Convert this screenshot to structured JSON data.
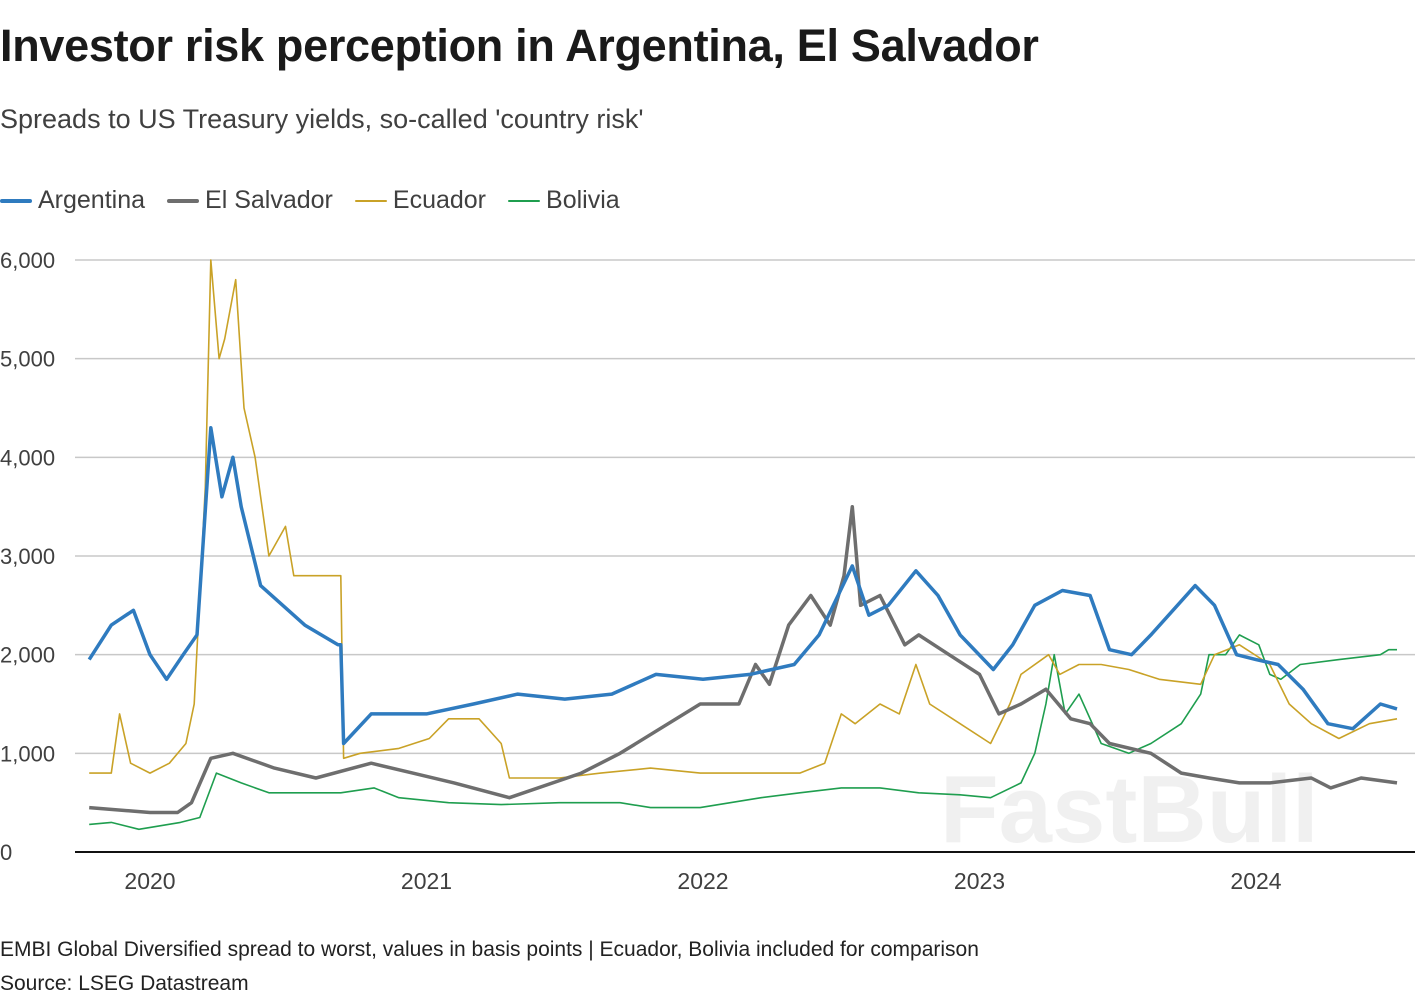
{
  "chart_data": {
    "type": "line",
    "title": "Investor risk perception in Argentina, El Salvador",
    "subtitle": "Spreads to US Treasury yields, so-called 'country risk'",
    "xlabel": "",
    "ylabel": "",
    "x_unit": "year",
    "xlim": [
      2019.73,
      2024.57
    ],
    "ylim": [
      0,
      6000
    ],
    "yticks": [
      0,
      1000,
      2000,
      3000,
      4000,
      5000,
      6000
    ],
    "ytick_labels": [
      "0",
      "1,000",
      "2,000",
      "3,000",
      "4,000",
      "5,000",
      "6,000"
    ],
    "xticks": [
      2020,
      2021,
      2022,
      2023,
      2024
    ],
    "xtick_labels": [
      "2020",
      "2021",
      "2022",
      "2023",
      "2024"
    ],
    "grid": "horizontal",
    "legend_position": "top-left",
    "series": [
      {
        "name": "Argentina",
        "color": "#2f7bbf",
        "x": [
          2019.78,
          2019.86,
          2019.94,
          2020.0,
          2020.06,
          2020.12,
          2020.17,
          2020.22,
          2020.26,
          2020.3,
          2020.33,
          2020.4,
          2020.48,
          2020.56,
          2020.68,
          2020.69,
          2020.7,
          2020.8,
          2020.95,
          2021.0,
          2021.17,
          2021.33,
          2021.5,
          2021.67,
          2021.83,
          2022.0,
          2022.17,
          2022.33,
          2022.42,
          2022.54,
          2022.6,
          2022.67,
          2022.77,
          2022.85,
          2022.93,
          2023.05,
          2023.12,
          2023.2,
          2023.3,
          2023.4,
          2023.47,
          2023.55,
          2023.62,
          2023.78,
          2023.85,
          2023.93,
          2024.0,
          2024.08,
          2024.17,
          2024.26,
          2024.35,
          2024.45,
          2024.51
        ],
        "values": [
          1950,
          2300,
          2450,
          2000,
          1750,
          2000,
          2200,
          4300,
          3600,
          4000,
          3500,
          2700,
          2500,
          2300,
          2100,
          2100,
          1100,
          1400,
          1400,
          1400,
          1500,
          1600,
          1550,
          1600,
          1800,
          1750,
          1800,
          1900,
          2200,
          2900,
          2400,
          2500,
          2850,
          2600,
          2200,
          1850,
          2100,
          2500,
          2650,
          2600,
          2050,
          2000,
          2200,
          2700,
          2500,
          2000,
          1950,
          1900,
          1650,
          1300,
          1250,
          1500,
          1450
        ]
      },
      {
        "name": "El Salvador",
        "color": "#6e6e6e",
        "x": [
          2019.78,
          2020.0,
          2020.1,
          2020.15,
          2020.22,
          2020.3,
          2020.45,
          2020.6,
          2020.8,
          2020.95,
          2021.1,
          2021.3,
          2021.56,
          2021.7,
          2021.99,
          2022.13,
          2022.19,
          2022.24,
          2022.31,
          2022.39,
          2022.46,
          2022.51,
          2022.54,
          2022.57,
          2022.64,
          2022.73,
          2022.78,
          2022.89,
          2023.0,
          2023.07,
          2023.15,
          2023.24,
          2023.33,
          2023.4,
          2023.47,
          2023.62,
          2023.73,
          2023.83,
          2023.94,
          2024.05,
          2024.2,
          2024.27,
          2024.38,
          2024.51
        ],
        "values": [
          450,
          400,
          400,
          500,
          950,
          1000,
          850,
          750,
          900,
          800,
          700,
          550,
          800,
          1000,
          1500,
          1500,
          1900,
          1700,
          2300,
          2600,
          2300,
          2800,
          3500,
          2500,
          2600,
          2100,
          2200,
          2000,
          1800,
          1400,
          1500,
          1650,
          1350,
          1300,
          1100,
          1000,
          800,
          750,
          700,
          700,
          750,
          650,
          750,
          700
        ]
      },
      {
        "name": "Ecuador",
        "color": "#c9a227",
        "x": [
          2019.78,
          2019.86,
          2019.89,
          2019.93,
          2020.0,
          2020.07,
          2020.13,
          2020.16,
          2020.2,
          2020.22,
          2020.25,
          2020.27,
          2020.31,
          2020.34,
          2020.38,
          2020.43,
          2020.49,
          2020.52,
          2020.69,
          2020.7,
          2020.76,
          2020.9,
          2021.01,
          2021.08,
          2021.19,
          2021.27,
          2021.3,
          2021.48,
          2021.63,
          2021.81,
          2021.99,
          2022.17,
          2022.35,
          2022.44,
          2022.5,
          2022.55,
          2022.64,
          2022.71,
          2022.77,
          2022.82,
          2022.93,
          2023.04,
          2023.11,
          2023.15,
          2023.25,
          2023.29,
          2023.36,
          2023.44,
          2023.54,
          2023.65,
          2023.8,
          2023.85,
          2023.94,
          2024.05,
          2024.12,
          2024.2,
          2024.3,
          2024.41,
          2024.51
        ],
        "values": [
          800,
          800,
          1400,
          900,
          800,
          900,
          1100,
          1500,
          3700,
          6000,
          5000,
          5200,
          5800,
          4500,
          4000,
          3000,
          3300,
          2800,
          2800,
          950,
          1000,
          1050,
          1150,
          1350,
          1350,
          1100,
          750,
          750,
          800,
          850,
          800,
          800,
          800,
          900,
          1400,
          1300,
          1500,
          1400,
          1900,
          1500,
          1300,
          1100,
          1500,
          1800,
          2000,
          1800,
          1900,
          1900,
          1850,
          1750,
          1700,
          2000,
          2100,
          1900,
          1500,
          1300,
          1150,
          1300,
          1350
        ]
      },
      {
        "name": "Bolivia",
        "color": "#1f9e4f",
        "x": [
          2019.78,
          2019.86,
          2019.96,
          2020.11,
          2020.18,
          2020.24,
          2020.33,
          2020.43,
          2020.54,
          2020.69,
          2020.81,
          2020.9,
          2021.08,
          2021.27,
          2021.48,
          2021.7,
          2021.81,
          2021.99,
          2022.21,
          2022.35,
          2022.5,
          2022.64,
          2022.78,
          2022.93,
          2023.04,
          2023.15,
          2023.2,
          2023.24,
          2023.27,
          2023.31,
          2023.36,
          2023.44,
          2023.54,
          2023.62,
          2023.73,
          2023.8,
          2023.83,
          2023.89,
          2023.94,
          2024.01,
          2024.05,
          2024.09,
          2024.16,
          2024.3,
          2024.45,
          2024.48,
          2024.51
        ],
        "values": [
          280,
          300,
          230,
          300,
          350,
          800,
          700,
          600,
          600,
          600,
          650,
          550,
          500,
          480,
          500,
          500,
          450,
          450,
          550,
          600,
          650,
          650,
          600,
          580,
          550,
          700,
          1000,
          1500,
          2000,
          1400,
          1600,
          1100,
          1000,
          1100,
          1300,
          1600,
          2000,
          2000,
          2200,
          2100,
          1800,
          1750,
          1900,
          1950,
          2000,
          2050,
          2050
        ]
      }
    ],
    "footnote": "EMBI Global Diversified spread to worst, values in basis points | Ecuador, Bolivia included for comparison",
    "source": "Source: LSEG Datastream",
    "watermark": "FastBull"
  }
}
